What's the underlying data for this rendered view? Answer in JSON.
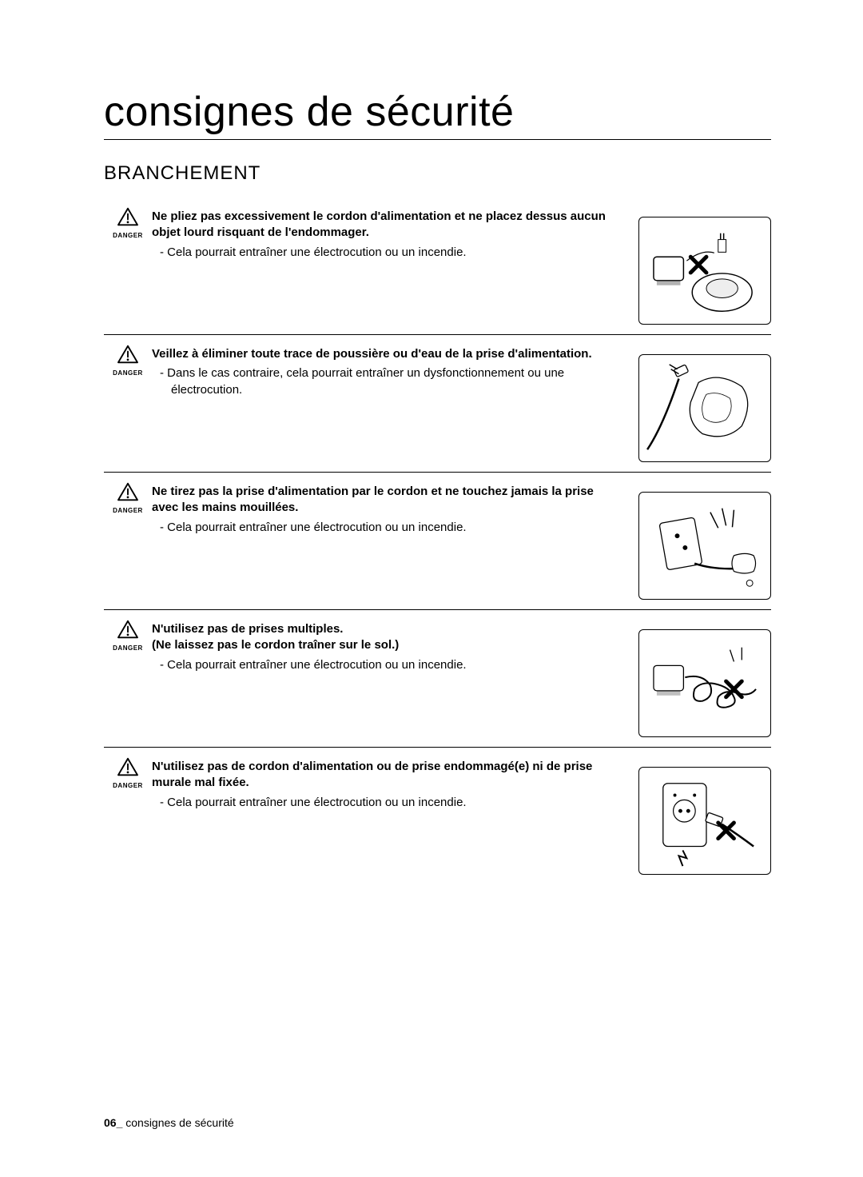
{
  "page": {
    "title": "consignes de sécurité",
    "section_heading": "BRANCHEMENT",
    "footer_page": "06_",
    "footer_text": " consignes de sécurité"
  },
  "icon": {
    "label": "DANGER",
    "stroke": "#000000",
    "fill": "#ffffff"
  },
  "warnings": [
    {
      "heading": "Ne pliez pas excessivement le cordon d'alimentation et ne placez dessus aucun objet lourd risquant de l'endommager.",
      "heading2": "",
      "detail": "Cela pourrait entraîner une électrocution ou un incendie.",
      "image": "vacuum-on-cord"
    },
    {
      "heading": "Veillez à éliminer toute trace de poussière ou d'eau de la prise d'alimentation.",
      "heading2": "",
      "detail": "Dans le cas contraire, cela pourrait entraîner un dysfonctionnement ou une électrocution.",
      "image": "wipe-plug"
    },
    {
      "heading": "Ne tirez pas la prise d'alimentation par le cordon et ne touchez jamais la prise avec les mains mouillées.",
      "heading2": "",
      "detail": "Cela pourrait entraîner une électrocution ou un incendie.",
      "image": "wet-hand-plug"
    },
    {
      "heading": "N'utilisez pas de prises multiples.",
      "heading2": "(Ne laissez pas le cordon traîner sur le sol.)",
      "detail": "Cela pourrait entraîner une électrocution ou un incendie.",
      "image": "power-strip"
    },
    {
      "heading": "N'utilisez pas de cordon d'alimentation ou de prise endommagé(e) ni de prise murale mal fixée.",
      "heading2": "",
      "detail": "Cela pourrait entraîner une électrocution ou un incendie.",
      "image": "damaged-outlet"
    }
  ],
  "style": {
    "title_fontsize": 52,
    "heading_fontsize": 24,
    "body_fontsize": 15,
    "border_color": "#000000",
    "background_color": "#ffffff",
    "image_box_w": 166,
    "image_box_h": 135
  }
}
